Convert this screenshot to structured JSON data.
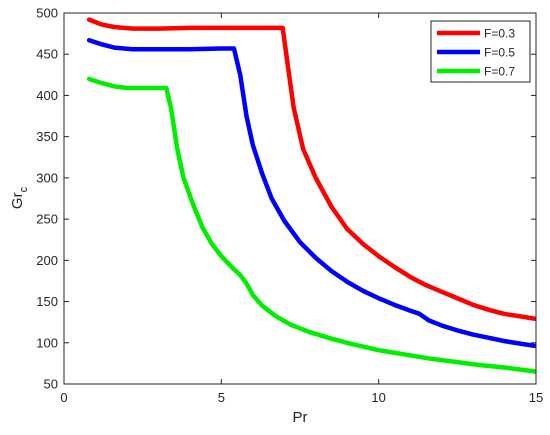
{
  "chart_data": {
    "type": "line",
    "xlabel": "Pr",
    "ylabel": {
      "main": "Gr",
      "sub": "c"
    },
    "xlim": [
      0,
      15
    ],
    "ylim": [
      50,
      500
    ],
    "xticks": [
      0,
      5,
      10,
      15
    ],
    "yticks": [
      50,
      100,
      150,
      200,
      250,
      300,
      350,
      400,
      450,
      500
    ],
    "grid": false,
    "legend_position": "top-right",
    "series": [
      {
        "name": "F=0.3",
        "color": "#ff0000",
        "points": [
          [
            0.8,
            492
          ],
          [
            1.2,
            486
          ],
          [
            1.6,
            483
          ],
          [
            2.2,
            481
          ],
          [
            3,
            481
          ],
          [
            4,
            482
          ],
          [
            5,
            482
          ],
          [
            6,
            482
          ],
          [
            6.95,
            482
          ],
          [
            7.1,
            440
          ],
          [
            7.3,
            385
          ],
          [
            7.6,
            335
          ],
          [
            8,
            300
          ],
          [
            8.5,
            265
          ],
          [
            9,
            238
          ],
          [
            9.5,
            220
          ],
          [
            10,
            205
          ],
          [
            10.5,
            192
          ],
          [
            11,
            180
          ],
          [
            11.5,
            170
          ],
          [
            12,
            162
          ],
          [
            12.5,
            154
          ],
          [
            13,
            146
          ],
          [
            13.5,
            140
          ],
          [
            14,
            135
          ],
          [
            14.5,
            132
          ],
          [
            15,
            129
          ]
        ]
      },
      {
        "name": "F=0.5",
        "color": "#0000ff",
        "points": [
          [
            0.8,
            467
          ],
          [
            1.2,
            462
          ],
          [
            1.6,
            458
          ],
          [
            2.2,
            456
          ],
          [
            3,
            456
          ],
          [
            4,
            456
          ],
          [
            5,
            457
          ],
          [
            5.4,
            457
          ],
          [
            5.6,
            425
          ],
          [
            5.8,
            375
          ],
          [
            6,
            340
          ],
          [
            6.3,
            305
          ],
          [
            6.6,
            275
          ],
          [
            7,
            248
          ],
          [
            7.5,
            222
          ],
          [
            8,
            203
          ],
          [
            8.5,
            187
          ],
          [
            9,
            174
          ],
          [
            9.5,
            163
          ],
          [
            10,
            154
          ],
          [
            10.5,
            146
          ],
          [
            11,
            139
          ],
          [
            11.3,
            135
          ],
          [
            11.6,
            127
          ],
          [
            12,
            121
          ],
          [
            12.5,
            115
          ],
          [
            13,
            110
          ],
          [
            13.5,
            106
          ],
          [
            14,
            102
          ],
          [
            14.5,
            99
          ],
          [
            15,
            96
          ]
        ]
      },
      {
        "name": "F=0.7",
        "color": "#00ee00",
        "points": [
          [
            0.8,
            420
          ],
          [
            1.2,
            415
          ],
          [
            1.6,
            411
          ],
          [
            2,
            409
          ],
          [
            2.5,
            409
          ],
          [
            3.25,
            409
          ],
          [
            3.4,
            385
          ],
          [
            3.6,
            335
          ],
          [
            3.8,
            300
          ],
          [
            4.1,
            268
          ],
          [
            4.4,
            240
          ],
          [
            4.7,
            220
          ],
          [
            5,
            205
          ],
          [
            5.3,
            193
          ],
          [
            5.6,
            182
          ],
          [
            5.8,
            172
          ],
          [
            6,
            158
          ],
          [
            6.3,
            145
          ],
          [
            6.7,
            133
          ],
          [
            7.2,
            122
          ],
          [
            7.8,
            113
          ],
          [
            8.5,
            105
          ],
          [
            9.2,
            98
          ],
          [
            10,
            91
          ],
          [
            10.8,
            86
          ],
          [
            11.6,
            81
          ],
          [
            12.4,
            77
          ],
          [
            13.2,
            73
          ],
          [
            14,
            70
          ],
          [
            14.6,
            67
          ],
          [
            15,
            65
          ]
        ]
      }
    ]
  }
}
